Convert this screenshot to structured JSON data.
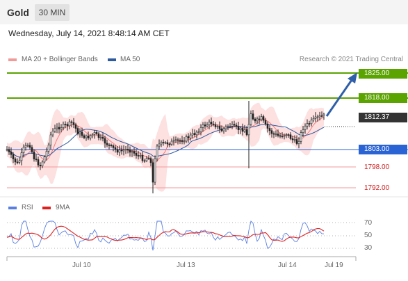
{
  "header": {
    "symbol": "Gold",
    "timeframe": "30 MIN",
    "datetime": "Wednesday, July 14, 2021 8:48:14 AM CET"
  },
  "legend": {
    "ma20": "MA 20 + Bollinger Bands",
    "ma50": "MA 50",
    "credit": "Research © 2021 Trading Central"
  },
  "levels": {
    "r2": "1825.00",
    "r1": "1818.00",
    "current": "1812.37",
    "s1": "1803.00",
    "s2": "1798.00",
    "s3": "1792.00"
  },
  "indicator": {
    "rsi": "RSI",
    "ma9": "9MA",
    "y70": "70",
    "y50": "50",
    "y30": "30"
  },
  "xaxis": [
    "Jul 10",
    "Jul 13",
    "Jul 14",
    "Jul 19"
  ],
  "colors": {
    "green": "#5aa300",
    "blue": "#2a63d4",
    "dark": "#333333",
    "red": "#d02020",
    "salmon": "#f29a9a",
    "bb_fill": "#fde0e0",
    "ma20": "#f47a7a",
    "ma50": "#2e5a9e",
    "arrow": "#2f5fa8"
  },
  "chart_data": {
    "type": "candlestick",
    "price_range": [
      1790,
      1827
    ],
    "resistance": [
      1825.0,
      1818.0
    ],
    "support": [
      1803.0,
      1798.0,
      1792.0
    ],
    "last": 1812.37,
    "rsi_levels": [
      70,
      50,
      30
    ]
  }
}
